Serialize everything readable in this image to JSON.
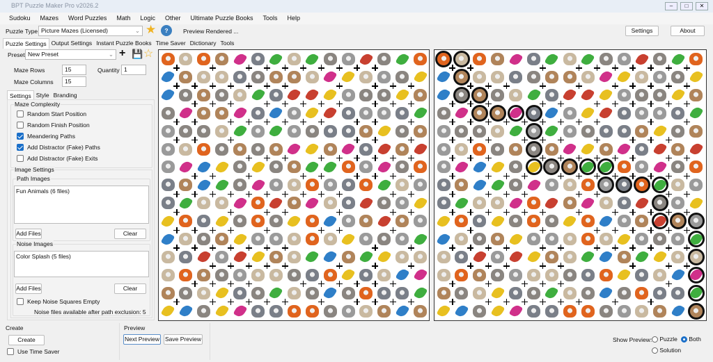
{
  "window": {
    "title": "BPT Puzzle Maker Pro v2026.2"
  },
  "menu": [
    "Sudoku",
    "Mazes",
    "Word Puzzles",
    "Math",
    "Logic",
    "Other",
    "Ultimate Puzzle Books",
    "Tools",
    "Help"
  ],
  "toolbar": {
    "puzzle_type_label": "Puzzle Type",
    "puzzle_type_value": "Picture Mazes (Licensed)",
    "status": "Preview Rendered ...",
    "settings": "Settings",
    "about": "About"
  },
  "main_tabs": [
    "Puzzle Settings",
    "Output Settings",
    "Instant Puzzle Books",
    "Time Saver",
    "Dictionary",
    "Tools"
  ],
  "preset": {
    "label": "Preset",
    "value": "New Preset"
  },
  "fields": {
    "rows_label": "Maze Rows",
    "rows": "15",
    "cols_label": "Maze Columns",
    "cols": "15",
    "qty_label": "Quantity",
    "qty": "1"
  },
  "sub_tabs": [
    "Settings",
    "Style",
    "Branding"
  ],
  "complexity": {
    "title": "Maze Complexity",
    "options": [
      {
        "label": "Random Start Position",
        "checked": false
      },
      {
        "label": "Random Finish Position",
        "checked": false
      },
      {
        "label": "Meandering Paths",
        "checked": true
      },
      {
        "label": "Add Distractor (Fake) Paths",
        "checked": true
      },
      {
        "label": "Add Distractor (Fake) Exits",
        "checked": false
      }
    ]
  },
  "images": {
    "title": "Image Settings",
    "path_title": "Path Images",
    "path_item": "Fun Animals (6 files)",
    "noise_title": "Noise Images",
    "noise_item": "Color Splash (5 files)",
    "add_files": "Add Files",
    "clear": "Clear",
    "keep_empty": "Keep Noise Squares Empty",
    "noise_info": "Noise files available after path exclusion: 5"
  },
  "create": {
    "title": "Create",
    "button": "Create",
    "time_saver": "Use Time Saver"
  },
  "preview": {
    "title": "Preview",
    "next": "Next Preview",
    "save": "Save Preview"
  },
  "show_preview": {
    "label": "Show Preview:",
    "puzzle": "Puzzle",
    "both": "Both",
    "solution": "Solution",
    "selected": "Both"
  },
  "colors": {
    "accent": "#1a6fc9",
    "star": "#f0b323"
  },
  "maze": {
    "rows": 15,
    "cols": 15,
    "path_images": [
      "cat",
      "dog",
      "hamster",
      "squirrel",
      "persian-cat",
      "chihuahua"
    ],
    "noise_images": [
      "green-splash",
      "blue-splash",
      "pink-splash",
      "yellow-splash",
      "red-splash"
    ]
  }
}
